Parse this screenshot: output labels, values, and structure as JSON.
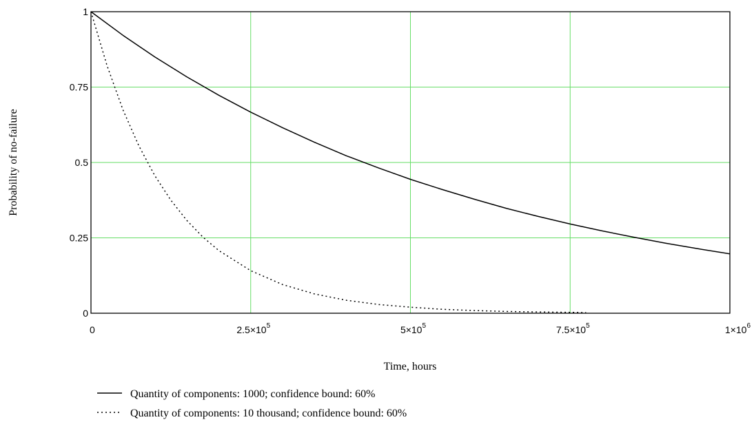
{
  "chart_data": {
    "type": "line",
    "title": "",
    "xlabel": "Time, hours",
    "ylabel": "Probability of no-failure",
    "xlim": [
      0,
      1000000
    ],
    "ylim": [
      0,
      1
    ],
    "grid": true,
    "grid_color": "#66dd66",
    "legend_position": "bottom-left",
    "x_ticks": [
      {
        "value": 0,
        "mantissa": "0",
        "exp": ""
      },
      {
        "value": 250000,
        "mantissa": "2.5×10",
        "exp": "5"
      },
      {
        "value": 500000,
        "mantissa": "5×10",
        "exp": "5"
      },
      {
        "value": 750000,
        "mantissa": "7.5×10",
        "exp": "5"
      },
      {
        "value": 1000000,
        "mantissa": "1×10",
        "exp": "6"
      }
    ],
    "y_ticks": [
      {
        "value": 0,
        "label": "0"
      },
      {
        "value": 0.25,
        "label": "0.25"
      },
      {
        "value": 0.5,
        "label": "0.5"
      },
      {
        "value": 0.75,
        "label": "0.75"
      },
      {
        "value": 1,
        "label": "1"
      }
    ],
    "series": [
      {
        "name": "Quantity of components: 1000; confidence bound: 60%",
        "style": "solid",
        "color": "#000000",
        "x": [
          0,
          50000,
          100000,
          150000,
          200000,
          250000,
          300000,
          350000,
          400000,
          450000,
          500000,
          550000,
          600000,
          650000,
          700000,
          750000,
          800000,
          850000,
          900000,
          950000,
          1000000
        ],
        "y": [
          1.0,
          0.922,
          0.85,
          0.784,
          0.723,
          0.667,
          0.615,
          0.567,
          0.522,
          0.482,
          0.444,
          0.41,
          0.378,
          0.348,
          0.321,
          0.296,
          0.273,
          0.252,
          0.232,
          0.214,
          0.197
        ]
      },
      {
        "name": "Quantity of components: 10 thousand; confidence bound: 60%",
        "style": "dotted",
        "color": "#000000",
        "x": [
          0,
          25000,
          50000,
          75000,
          100000,
          125000,
          150000,
          175000,
          200000,
          250000,
          300000,
          350000,
          400000,
          450000,
          500000,
          550000,
          600000,
          650000,
          700000,
          750000,
          775000
        ],
        "y": [
          1.0,
          0.822,
          0.675,
          0.555,
          0.456,
          0.375,
          0.308,
          0.253,
          0.208,
          0.141,
          0.095,
          0.064,
          0.043,
          0.029,
          0.02,
          0.013,
          0.009,
          0.006,
          0.004,
          0.003,
          0.002
        ]
      }
    ]
  }
}
